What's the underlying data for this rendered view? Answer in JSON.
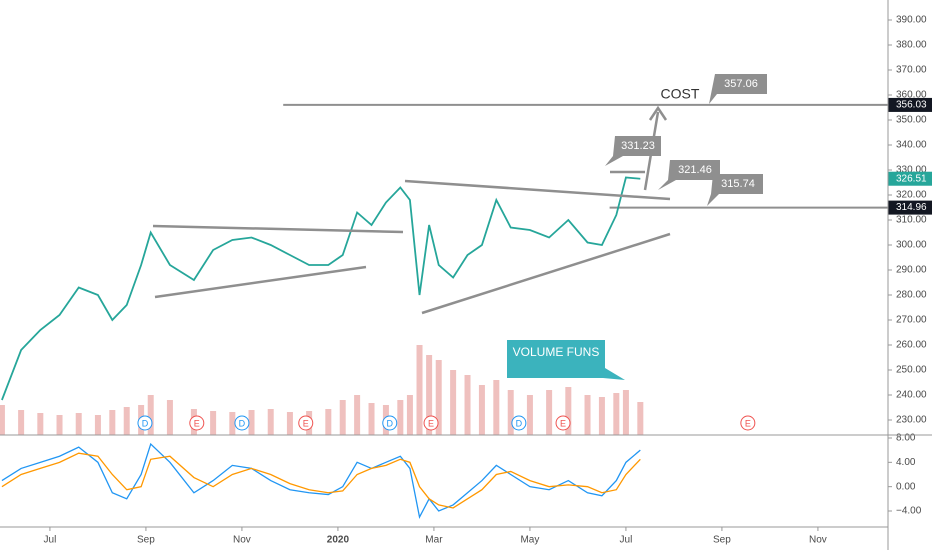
{
  "chart_data": {
    "type": "line",
    "x": [
      -1.0,
      -0.6,
      -0.2,
      0.2,
      0.6,
      1.0,
      1.3,
      1.6,
      1.9,
      2.1,
      2.5,
      3.0,
      3.4,
      3.8,
      4.2,
      4.6,
      5.0,
      5.4,
      5.8,
      6.1,
      6.4,
      6.7,
      7.0,
      7.3,
      7.5,
      7.7,
      7.9,
      8.1,
      8.4,
      8.7,
      9.0,
      9.3,
      9.6,
      10.0,
      10.4,
      10.8,
      11.2,
      11.5,
      11.8,
      12.0,
      12.3
    ],
    "series": [
      {
        "color": "#26a69a",
        "values": [
          238,
          258,
          266,
          272,
          283,
          280,
          270,
          276,
          292,
          305,
          292,
          286,
          298,
          302,
          303,
          300,
          296,
          292,
          292,
          296,
          313,
          308,
          317,
          323,
          318,
          280,
          308,
          292,
          287,
          296,
          300,
          318,
          307,
          306,
          303,
          310,
          301,
          300,
          312,
          327,
          326.51
        ]
      }
    ],
    "xlim": [
      -1.04,
      17.46
    ],
    "xticks": [
      {
        "value": 0,
        "label": "Jul"
      },
      {
        "value": 2,
        "label": "Sep"
      },
      {
        "value": 4,
        "label": "Nov"
      },
      {
        "value": 6,
        "label": "2020"
      },
      {
        "value": 8,
        "label": "Mar"
      },
      {
        "value": 10,
        "label": "May"
      },
      {
        "value": 12,
        "label": "Jul"
      },
      {
        "value": 14,
        "label": "Sep"
      },
      {
        "value": 16,
        "label": "Nov"
      }
    ],
    "ylim": [
      222,
      398
    ],
    "yticks": [
      {
        "value": 230,
        "label": "230.00"
      },
      {
        "value": 240,
        "label": "240.00"
      },
      {
        "value": 250,
        "label": "250.00"
      },
      {
        "value": 260,
        "label": "260.00"
      },
      {
        "value": 270,
        "label": "270.00"
      },
      {
        "value": 280,
        "label": "280.00"
      },
      {
        "value": 290,
        "label": "290.00"
      },
      {
        "value": 300,
        "label": "300.00"
      },
      {
        "value": 310,
        "label": "310.00"
      },
      {
        "value": 320,
        "label": "320.00"
      },
      {
        "value": 330,
        "label": "330.00"
      },
      {
        "value": 340,
        "label": "340.00"
      },
      {
        "value": 350,
        "label": "350.00"
      },
      {
        "value": 360,
        "label": "360.00"
      },
      {
        "value": 370,
        "label": "370.00"
      },
      {
        "value": 380,
        "label": "380.00"
      },
      {
        "value": 390,
        "label": "390.00"
      }
    ],
    "price_labels": [
      {
        "value": 356.03,
        "label": "356.03",
        "color": "#131722"
      },
      {
        "value": 326.51,
        "label": "326.51",
        "color": "#26a69a"
      },
      {
        "value": 314.96,
        "label": "314.96",
        "color": "#131722"
      }
    ],
    "horizontal_lines": [
      {
        "value": 356.03,
        "from": 4.86
      },
      {
        "value": 314.96,
        "from": 11.66
      }
    ],
    "annotations": [
      "357.06",
      "COST",
      "331.23",
      "321.46",
      "315.74",
      "VOLUME FUNS"
    ],
    "volume": {
      "color": "#e8a5a3",
      "ylim": [
        0,
        10
      ],
      "values": [
        3,
        2.5,
        2.2,
        2,
        2.2,
        2,
        2.5,
        2.8,
        3,
        4,
        3.5,
        2.6,
        2.4,
        2.3,
        2.5,
        2.6,
        2.3,
        2.4,
        2.6,
        3.5,
        4,
        3.2,
        3,
        3.5,
        4,
        9,
        8,
        7.5,
        6.5,
        6,
        5,
        5.5,
        4.5,
        4,
        4.5,
        4.8,
        4,
        3.8,
        4.2,
        4.5,
        3.3
      ]
    },
    "events": [
      {
        "label": "D",
        "x": 1.98
      },
      {
        "label": "E",
        "x": 3.06
      },
      {
        "label": "D",
        "x": 4.0
      },
      {
        "label": "E",
        "x": 5.33
      },
      {
        "label": "D",
        "x": 7.08
      },
      {
        "label": "E",
        "x": 7.94
      },
      {
        "label": "D",
        "x": 9.77
      },
      {
        "label": "E",
        "x": 10.69
      },
      {
        "label": "E",
        "x": 14.54
      }
    ],
    "macd": {
      "ylim": [
        -6.3,
        8.0
      ],
      "yticks": [
        {
          "value": -4,
          "label": "−4.00"
        },
        {
          "value": 0,
          "label": "0.00"
        },
        {
          "value": 4,
          "label": "4.00"
        },
        {
          "value": 8,
          "label": "8.00"
        }
      ],
      "series": [
        {
          "color": "#2196f3",
          "values": [
            1,
            3,
            4,
            5,
            6.5,
            4,
            -1,
            -2,
            2,
            7,
            4,
            -1,
            1,
            3.5,
            3,
            1,
            -0.5,
            -1,
            -1.3,
            0,
            4,
            3,
            4,
            5,
            3,
            -5,
            -2,
            -4,
            -3,
            -1,
            1,
            3.5,
            2,
            0,
            -0.5,
            1,
            -1,
            -1.5,
            1,
            4,
            6
          ]
        },
        {
          "color": "#ff9800",
          "values": [
            0,
            2,
            3,
            4,
            5.5,
            5,
            2,
            -0.5,
            0,
            4.5,
            5,
            1.5,
            0,
            2,
            3,
            2,
            0.5,
            -0.5,
            -1,
            -0.7,
            2,
            3,
            3.5,
            4.5,
            4,
            0,
            -2,
            -3,
            -3.5,
            -2,
            -0.5,
            2,
            2.5,
            1,
            0,
            0.3,
            0,
            -1,
            -0.5,
            2,
            4.5
          ]
        }
      ]
    }
  }
}
